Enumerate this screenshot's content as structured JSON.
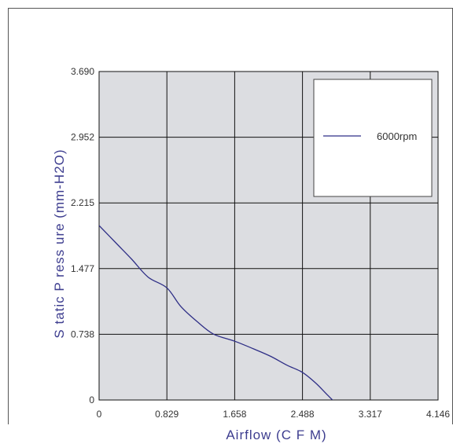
{
  "chart_data": {
    "type": "line",
    "xlabel": "Airflow (C F M)",
    "ylabel": "S tatic P ress ure (mm-H2O)",
    "x_ticks": [
      "0",
      "0.829",
      "1.658",
      "2.488",
      "3.317",
      "4.146"
    ],
    "y_ticks": [
      "0",
      "0.738",
      "1.477",
      "2.215",
      "2.952",
      "3.690"
    ],
    "xlim": [
      0,
      4.146
    ],
    "ylim": [
      0,
      3.69
    ],
    "grid": true,
    "legend_position": "top-right",
    "series": [
      {
        "name": "6000rpm",
        "color": "#2e2e86",
        "x": [
          0,
          0.2,
          0.4,
          0.6,
          0.829,
          1.0,
          1.2,
          1.4,
          1.658,
          1.9,
          2.1,
          2.3,
          2.488,
          2.65,
          2.8,
          2.9
        ],
        "y": [
          1.96,
          1.77,
          1.58,
          1.38,
          1.26,
          1.05,
          0.88,
          0.74,
          0.66,
          0.57,
          0.49,
          0.39,
          0.31,
          0.19,
          0.05,
          -0.04
        ]
      }
    ]
  }
}
